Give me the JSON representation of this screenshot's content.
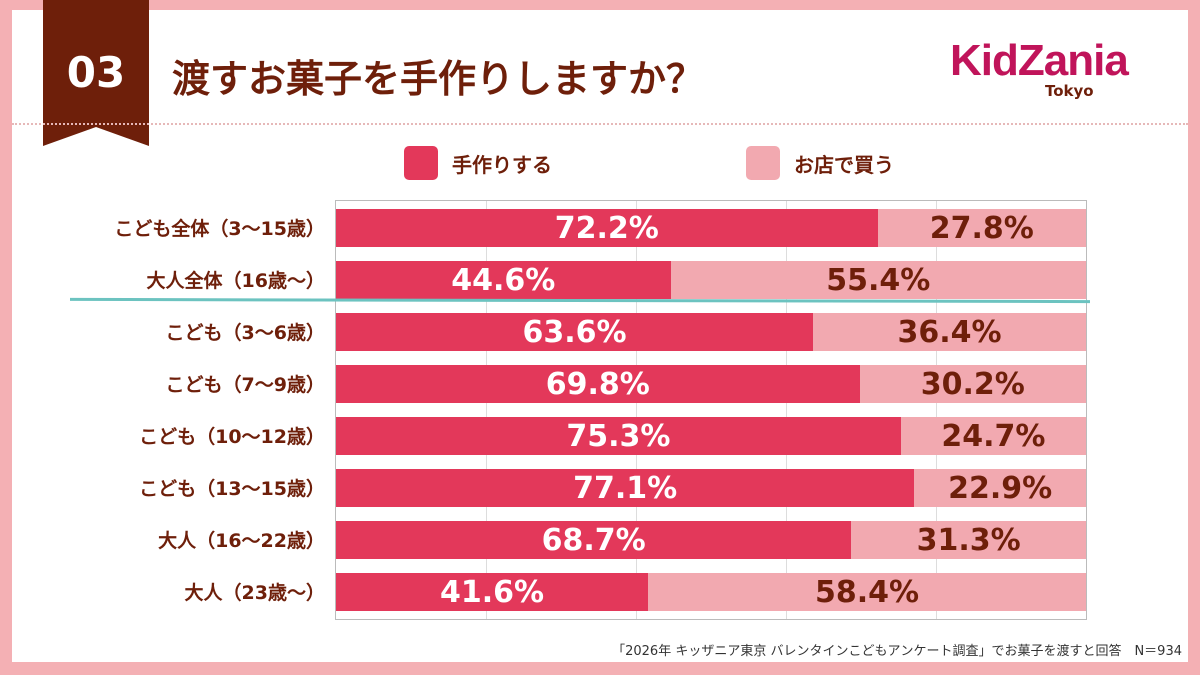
{
  "header": {
    "number": "03",
    "title": "渡すお菓子を手作りしますか？",
    "logo_text": "KidZania",
    "logo_sub": "Tokyo"
  },
  "colors": {
    "handmade": "#e3385a",
    "store": "#f2a9b0",
    "text": "#6e1f0a",
    "accent": "#6e1f0a"
  },
  "footnote": "「2026年 キッザニア東京 バレンタインこどもアンケート調査」でお菓子を渡すと回答　N＝934",
  "chart_data": {
    "type": "bar",
    "stacked": true,
    "orientation": "horizontal",
    "title": "渡すお菓子を手作りしますか？",
    "legend": [
      "手作りする",
      "お店で買う"
    ],
    "legend_position": "top",
    "categories": [
      "こども全体（3〜15歳）",
      "大人全体（16歳〜）",
      "こども（3〜6歳）",
      "こども（7〜9歳）",
      "こども（10〜12歳）",
      "こども（13〜15歳）",
      "大人（16〜22歳）",
      "大人（23歳〜）"
    ],
    "series": [
      {
        "name": "手作りする",
        "values": [
          72.2,
          44.6,
          63.6,
          69.8,
          75.3,
          77.1,
          68.7,
          41.6
        ]
      },
      {
        "name": "お店で買う",
        "values": [
          27.8,
          55.4,
          36.4,
          30.2,
          24.7,
          22.9,
          31.3,
          58.4
        ]
      }
    ],
    "xlim": [
      0,
      100
    ],
    "grid": true
  }
}
